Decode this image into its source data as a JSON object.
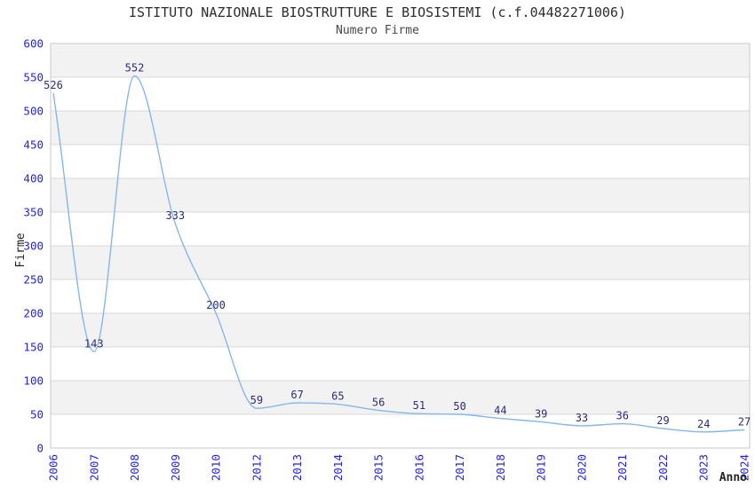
{
  "chart_data": {
    "type": "line",
    "title": "ISTITUTO NAZIONALE BIOSTRUTTURE E BIOSISTEMI (c.f.04482271006)",
    "subtitle": "Numero Firme",
    "xlabel": "Anno",
    "ylabel": "Firme",
    "categories": [
      "2006",
      "2007",
      "2008",
      "2009",
      "2010",
      "2012",
      "2013",
      "2014",
      "2015",
      "2016",
      "2017",
      "2018",
      "2019",
      "2020",
      "2021",
      "2022",
      "2023",
      "2024"
    ],
    "values": [
      526,
      143,
      552,
      333,
      200,
      59,
      67,
      65,
      56,
      51,
      50,
      44,
      39,
      33,
      36,
      29,
      24,
      27
    ],
    "ylim": [
      0,
      600
    ],
    "ytick_step": 50,
    "grid": true,
    "plot_bands_alternating": true,
    "legend": "none",
    "colors": {
      "line": "#86b7e8",
      "tick_labels": "#2323dc",
      "data_labels": "#2d2d73",
      "band_fill": "#f2f2f2",
      "gridline": "#dadada",
      "plot_border": "#c9c9c9",
      "title": "#2e2e2e",
      "subtitle": "#474747",
      "axis_title": "#222222"
    }
  }
}
